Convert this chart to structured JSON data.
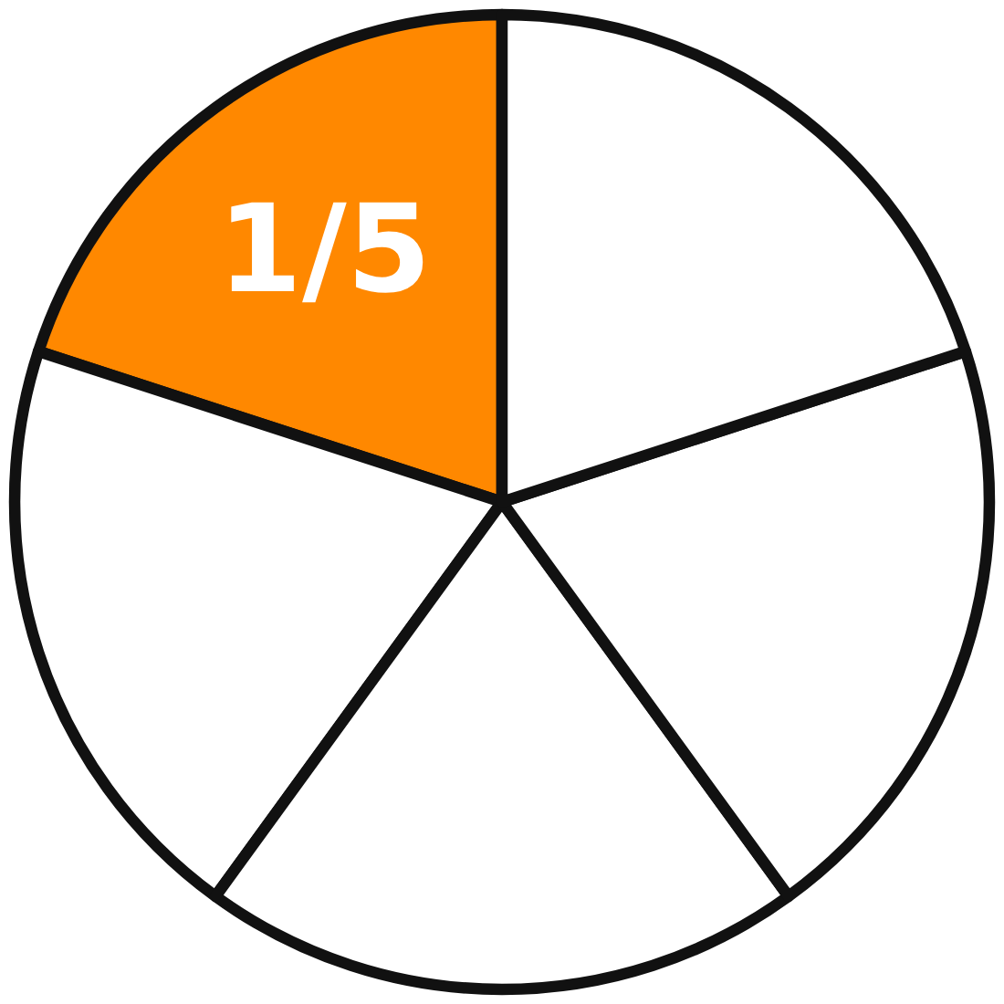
{
  "chart_data": {
    "type": "pie",
    "categories": [
      null,
      null,
      null,
      null,
      null
    ],
    "values": [
      0.2,
      0.2,
      0.2,
      0.2,
      0.2
    ],
    "colors": [
      "#ff8800",
      "#ffffff",
      "#ffffff",
      "#ffffff",
      "#ffffff"
    ],
    "value_labels": [
      "1/5",
      null,
      null,
      null,
      null
    ],
    "legend": false
  }
}
